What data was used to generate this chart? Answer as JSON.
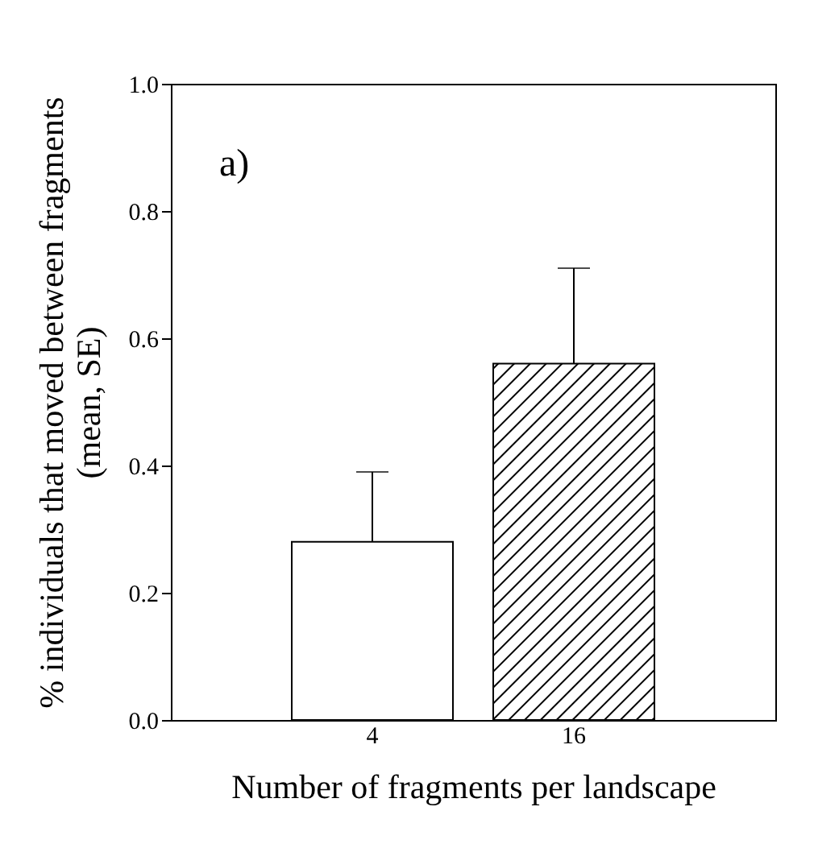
{
  "chart_data": {
    "type": "bar",
    "xlabel": "Number of fragments per landscape",
    "ylabel": "% individuals that moved between fragments\n(mean, SE)",
    "categories": [
      "4",
      "16"
    ],
    "values": [
      0.28,
      0.56
    ],
    "colors": [
      "#ffffff",
      "#000000"
    ],
    "errors": [
      [
        0.28,
        0.39
      ],
      [
        0.56,
        0.71
      ]
    ],
    "ylim": [
      0,
      1
    ],
    "yticks": [
      {
        "value": 0,
        "label": "0.0"
      },
      {
        "value": 0.2,
        "label": "0.2"
      },
      {
        "value": 0.4,
        "label": "0.4"
      },
      {
        "value": 0.6,
        "label": "0.6"
      },
      {
        "value": 0.8,
        "label": "0.8"
      },
      {
        "value": 1,
        "label": "1.0"
      }
    ],
    "annotations": [
      "a)"
    ],
    "grid": false,
    "legend": false
  }
}
